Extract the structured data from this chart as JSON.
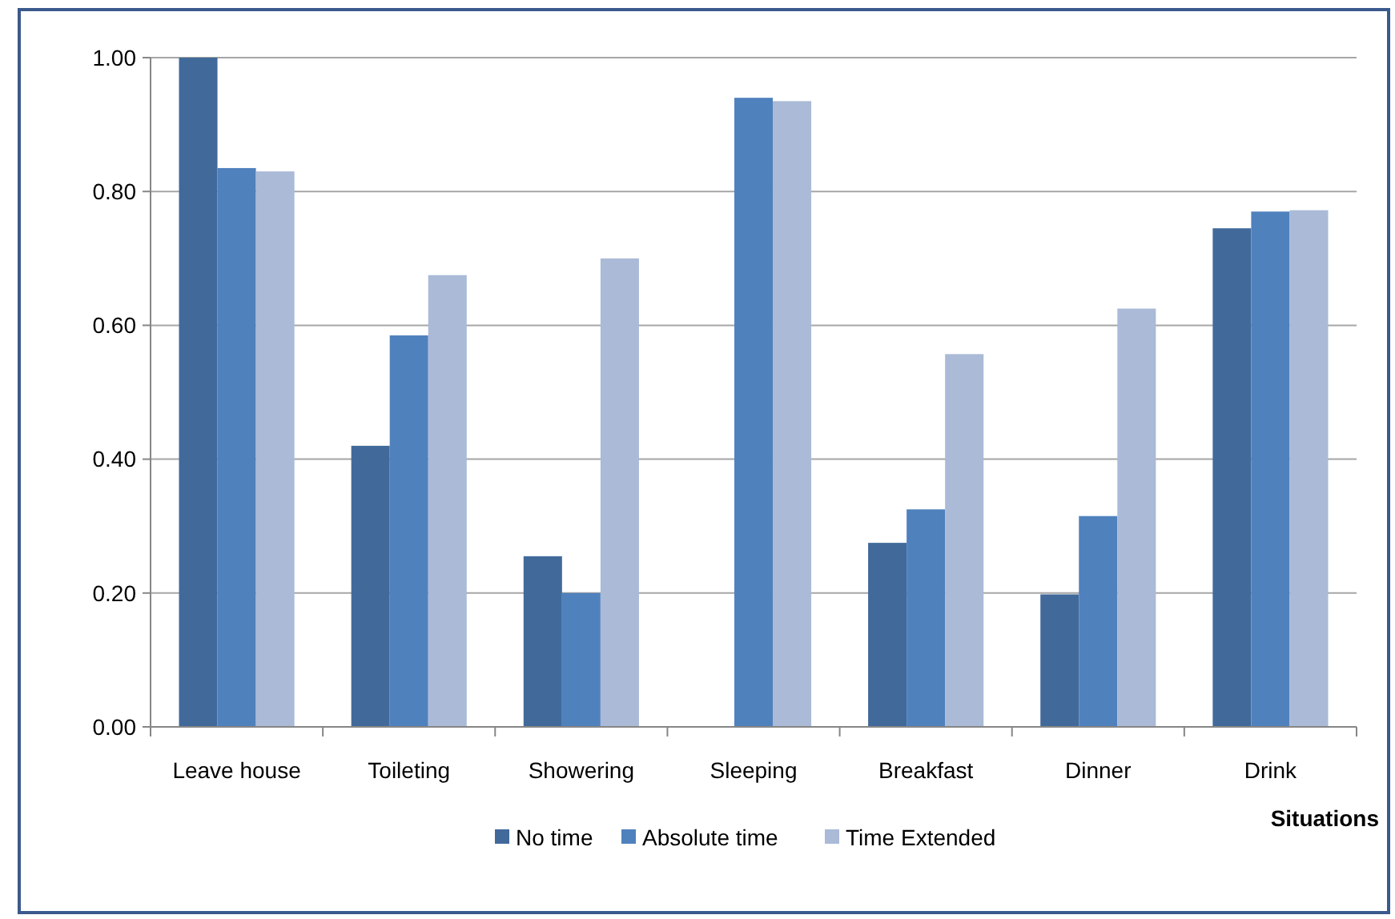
{
  "chart_data": {
    "type": "bar",
    "xlabel": "Situations",
    "categories": [
      "Leave house",
      "Toileting",
      "Showering",
      "Sleeping",
      "Breakfast",
      "Dinner",
      "Drink"
    ],
    "series": [
      {
        "name": "No time",
        "color": "#416a9b",
        "values": [
          1.0,
          0.42,
          0.255,
          null,
          0.275,
          0.198,
          0.745
        ]
      },
      {
        "name": "Absolute time",
        "color": "#4f81bd",
        "values": [
          0.835,
          0.585,
          0.2,
          0.94,
          0.325,
          0.315,
          0.77
        ]
      },
      {
        "name": "Time Extended",
        "color": "#aabad7",
        "values": [
          0.83,
          0.675,
          0.7,
          0.935,
          0.557,
          0.625,
          0.772
        ]
      }
    ],
    "ylim": [
      0,
      1
    ],
    "yticks": [
      {
        "value": 0,
        "label": "0.00"
      },
      {
        "value": 0.2,
        "label": "0.20"
      },
      {
        "value": 0.4,
        "label": "0.40"
      },
      {
        "value": 0.6,
        "label": "0.60"
      },
      {
        "value": 0.8,
        "label": "0.80"
      },
      {
        "value": 1,
        "label": "1.00"
      }
    ],
    "grid": "y",
    "legend": "bottom"
  }
}
